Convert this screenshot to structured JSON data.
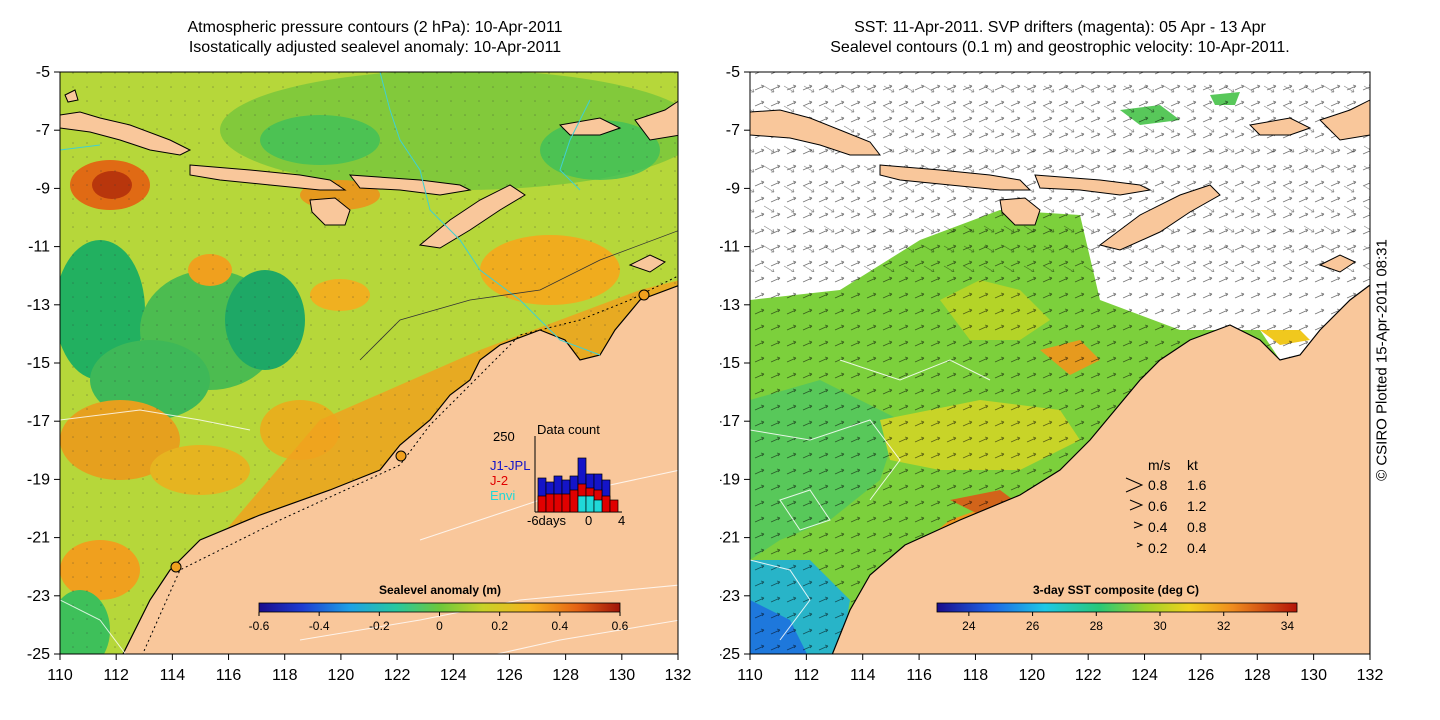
{
  "left_panel": {
    "title_line1": "Atmospheric pressure contours (2 hPa): 10-Apr-2011",
    "title_line2": "Isostatically adjusted sealevel anomaly: 10-Apr-2011",
    "x_ticks": [
      "110",
      "112",
      "114",
      "116",
      "118",
      "120",
      "122",
      "124",
      "126",
      "128",
      "130",
      "132"
    ],
    "y_ticks": [
      "-5",
      "-7",
      "-9",
      "-11",
      "-13",
      "-15",
      "-17",
      "-19",
      "-21",
      "-23",
      "-25"
    ],
    "colorbar": {
      "title": "Sealevel anomaly (m)",
      "ticks": [
        "-0.6",
        "-0.4",
        "-0.2",
        "0",
        "0.2",
        "0.4",
        "0.6"
      ],
      "range": [
        -0.6,
        0.6
      ]
    },
    "data_count": {
      "title": "Data count",
      "y_max_label": "250",
      "x_tick_labels": [
        "-6days",
        "0",
        "4"
      ],
      "legend": [
        {
          "label": "J1-JPL",
          "color": "#1414c8"
        },
        {
          "label": "J-2",
          "color": "#e00000"
        },
        {
          "label": "Envi",
          "color": "#20d8d8"
        }
      ]
    }
  },
  "right_panel": {
    "title_line1": "SST: 11-Apr-2011. SVP drifters (magenta): 05 Apr - 13 Apr",
    "title_line2": "Sealevel contours (0.1 m) and geostrophic velocity: 10-Apr-2011.",
    "x_ticks": [
      "110",
      "112",
      "114",
      "116",
      "118",
      "120",
      "122",
      "124",
      "126",
      "128",
      "130",
      "132"
    ],
    "y_ticks": [
      "-5",
      "-7",
      "-9",
      "-11",
      "-13",
      "-15",
      "-17",
      "-19",
      "-21",
      "-23",
      "-25"
    ],
    "colorbar": {
      "title": "3-day SST composite (deg C)",
      "ticks": [
        "24",
        "26",
        "28",
        "30",
        "32",
        "34"
      ],
      "range": [
        23,
        34.3
      ]
    },
    "velocity_legend": {
      "header_ms": "m/s",
      "header_kt": "kt",
      "rows": [
        {
          "ms": "0.8",
          "kt": "1.6"
        },
        {
          "ms": "0.6",
          "kt": "1.2"
        },
        {
          "ms": "0.4",
          "kt": "0.8"
        },
        {
          "ms": "0.2",
          "kt": "0.4"
        }
      ]
    }
  },
  "credit": "© CSIRO Plotted 15-Apr-2011 08:31",
  "colors": {
    "land": "#f9c79b",
    "ocean_left": "#9cd23c",
    "ocean_right": "#ffffff",
    "coast": "#000000",
    "cyan_contour": "#40d0d0"
  }
}
